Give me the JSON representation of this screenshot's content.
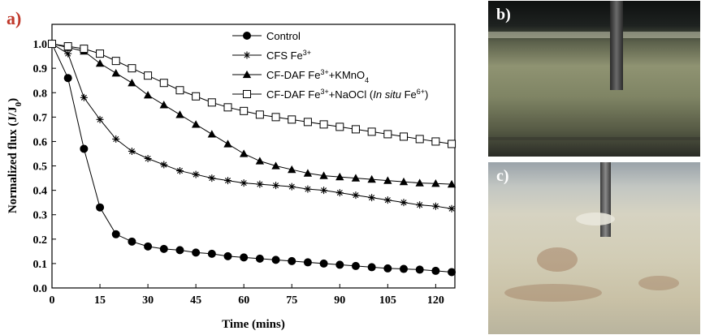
{
  "panel_a_label": "a)",
  "photos": [
    {
      "label": "b)"
    },
    {
      "label": "c)"
    }
  ],
  "chart_data": {
    "type": "line",
    "xlabel": "Time (mins)",
    "ylabel": "Normalized flux (J/J",
    "ylabel_sub": "0",
    "ylabel_close": ")",
    "xlim": [
      0,
      126
    ],
    "ylim": [
      0.0,
      1.08
    ],
    "xticks": [
      0,
      15,
      30,
      45,
      60,
      75,
      90,
      105,
      120
    ],
    "yticks": [
      0.0,
      0.1,
      0.2,
      0.3,
      0.4,
      0.5,
      0.6,
      0.7,
      0.8,
      0.9,
      1.0
    ],
    "x": [
      0,
      5,
      10,
      15,
      20,
      25,
      30,
      35,
      40,
      45,
      50,
      55,
      60,
      65,
      70,
      75,
      80,
      85,
      90,
      95,
      100,
      105,
      110,
      115,
      120,
      125
    ],
    "series": [
      {
        "legend": [
          {
            "t": "Control"
          }
        ],
        "marker": "circle",
        "values": [
          1.0,
          0.86,
          0.57,
          0.33,
          0.22,
          0.19,
          0.17,
          0.16,
          0.155,
          0.145,
          0.14,
          0.13,
          0.125,
          0.12,
          0.115,
          0.11,
          0.105,
          0.1,
          0.095,
          0.09,
          0.085,
          0.08,
          0.078,
          0.075,
          0.07,
          0.065
        ]
      },
      {
        "legend": [
          {
            "t": "CFS Fe"
          },
          {
            "t": "3+",
            "sup": true
          }
        ],
        "marker": "asterisk",
        "values": [
          1.0,
          0.96,
          0.78,
          0.69,
          0.61,
          0.56,
          0.53,
          0.505,
          0.48,
          0.465,
          0.45,
          0.44,
          0.43,
          0.425,
          0.42,
          0.415,
          0.405,
          0.4,
          0.39,
          0.38,
          0.37,
          0.36,
          0.35,
          0.34,
          0.335,
          0.325
        ]
      },
      {
        "legend": [
          {
            "t": "CF-DAF Fe"
          },
          {
            "t": "3+",
            "sup": true
          },
          {
            "t": "+KMnO"
          },
          {
            "t": "4",
            "sub": true
          }
        ],
        "marker": "triangle",
        "values": [
          1.0,
          0.985,
          0.97,
          0.92,
          0.88,
          0.84,
          0.79,
          0.75,
          0.71,
          0.67,
          0.63,
          0.59,
          0.55,
          0.52,
          0.5,
          0.485,
          0.47,
          0.46,
          0.455,
          0.45,
          0.445,
          0.44,
          0.435,
          0.43,
          0.428,
          0.425
        ]
      },
      {
        "legend": [
          {
            "t": "CF-DAF Fe"
          },
          {
            "t": "3+",
            "sup": true
          },
          {
            "t": "+NaOCl ("
          },
          {
            "t": "In situ",
            "it": true
          },
          {
            "t": " Fe"
          },
          {
            "t": "6+",
            "sup": true
          },
          {
            "t": ")"
          }
        ],
        "marker": "square",
        "values": [
          1.0,
          0.99,
          0.98,
          0.96,
          0.93,
          0.9,
          0.87,
          0.84,
          0.81,
          0.785,
          0.76,
          0.74,
          0.725,
          0.71,
          0.7,
          0.69,
          0.68,
          0.67,
          0.66,
          0.65,
          0.64,
          0.63,
          0.62,
          0.61,
          0.6,
          0.59
        ]
      }
    ]
  }
}
